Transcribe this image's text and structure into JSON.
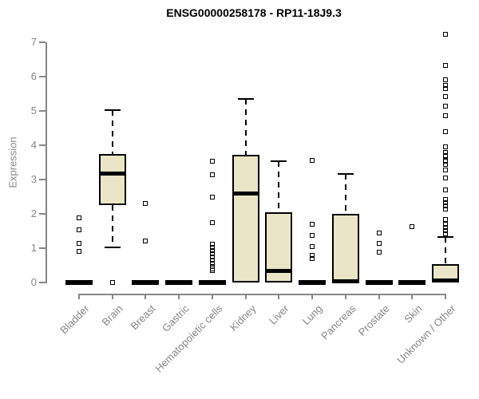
{
  "title": "ENSG00000258178 - RP11-18J9.3",
  "chart_data": {
    "type": "boxplot",
    "title": "ENSG00000258178 - RP11-18J9.3",
    "xlabel": "",
    "ylabel": "Expression",
    "ylim": [
      0,
      7
    ],
    "yticks": [
      0,
      1,
      2,
      3,
      4,
      5,
      6,
      7
    ],
    "grid": false,
    "legend": null,
    "categories": [
      "Bladder",
      "Brain",
      "Breast",
      "Gastric",
      "Hematopoietic cells",
      "Kidney",
      "Liver",
      "Lung",
      "Pancreas",
      "Prostate",
      "Skin",
      "Unknown / Other"
    ],
    "boxes": [
      {
        "label": "Bladder",
        "q1": 0,
        "median": 0,
        "q3": 0,
        "whisker_low": 0,
        "whisker_high": 0,
        "outliers": [
          0.91,
          1.14,
          1.53,
          1.88
        ]
      },
      {
        "label": "Brain",
        "q1": 2.26,
        "median": 3.17,
        "q3": 3.74,
        "whisker_low": 1.02,
        "whisker_high": 5.02,
        "outliers": [
          0
        ]
      },
      {
        "label": "Breast",
        "q1": 0,
        "median": 0,
        "q3": 0,
        "whisker_low": 0,
        "whisker_high": 0,
        "outliers": [
          1.21,
          2.3
        ]
      },
      {
        "label": "Gastric",
        "q1": 0,
        "median": 0,
        "q3": 0,
        "whisker_low": 0,
        "whisker_high": 0,
        "outliers": []
      },
      {
        "label": "Hematopoietic cells",
        "q1": 0,
        "median": 0,
        "q3": 0,
        "whisker_low": 0,
        "whisker_high": 0,
        "outliers": [
          0.35,
          0.4,
          0.47,
          0.56,
          0.65,
          0.74,
          0.84,
          0.93,
          1.02,
          1.12,
          1.74,
          2.5,
          3.13,
          3.54
        ]
      },
      {
        "label": "Kidney",
        "q1": 0,
        "median": 2.57,
        "q3": 3.72,
        "whisker_low": 0,
        "whisker_high": 5.35,
        "outliers": []
      },
      {
        "label": "Liver",
        "q1": 0,
        "median": 0.33,
        "q3": 2.05,
        "whisker_low": 0,
        "whisker_high": 3.53,
        "outliers": []
      },
      {
        "label": "Lung",
        "q1": 0,
        "median": 0,
        "q3": 0,
        "whisker_low": 0,
        "whisker_high": 0,
        "outliers": [
          0.7,
          0.79,
          1.05,
          1.37,
          1.7,
          3.56
        ]
      },
      {
        "label": "Pancreas",
        "q1": 0,
        "median": 0.03,
        "q3": 2.0,
        "whisker_low": 0,
        "whisker_high": 3.16,
        "outliers": []
      },
      {
        "label": "Prostate",
        "q1": 0,
        "median": 0,
        "q3": 0,
        "whisker_low": 0,
        "whisker_high": 0,
        "outliers": [
          0.88,
          1.14,
          1.44
        ]
      },
      {
        "label": "Skin",
        "q1": 0,
        "median": 0,
        "q3": 0,
        "whisker_low": 0,
        "whisker_high": 0,
        "outliers": [
          1.63
        ]
      },
      {
        "label": "Unknown / Other",
        "q1": 0,
        "median": 0.05,
        "q3": 0.53,
        "whisker_low": 0,
        "whisker_high": 1.33,
        "outliers": [
          1.42,
          1.51,
          1.6,
          1.7,
          1.84,
          2.14,
          2.23,
          2.33,
          2.42,
          2.7,
          3.05,
          3.28,
          3.44,
          3.53,
          3.67,
          3.7,
          3.79,
          3.95,
          4.4,
          4.86,
          5.14,
          5.42,
          5.65,
          5.74,
          5.91,
          6.33,
          7.23
        ]
      }
    ],
    "colors": {
      "box_fill": "#ebe5c7",
      "box_border": "#000000",
      "median": "#000000",
      "whisker": "#000000",
      "axis_line": "#878787",
      "axis_text": "#878787",
      "title_text": "#000000",
      "background": "#ffffff"
    }
  }
}
